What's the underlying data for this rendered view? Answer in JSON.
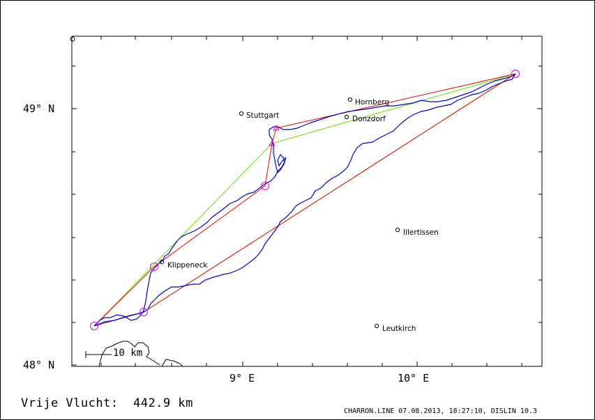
{
  "map": {
    "lat_labels": [
      {
        "id": "lat-49",
        "text": "49° N"
      },
      {
        "id": "lat-48",
        "text": "48° N"
      }
    ],
    "lon_labels": [
      {
        "id": "lon-9",
        "text": "9° E"
      },
      {
        "id": "lon-10",
        "text": "10° E"
      }
    ],
    "cities": [
      {
        "name": "Stuttgart"
      },
      {
        "name": "Hornberg"
      },
      {
        "name": "Donzdorf"
      },
      {
        "name": "Illertissen"
      },
      {
        "name": "Klippeneck"
      },
      {
        "name": "Leutkirch"
      }
    ],
    "scale_bar": {
      "label": "10 km"
    },
    "colors": {
      "frame": "#000000",
      "track": "#0000cc",
      "optimized_route": "#e00000",
      "alternate_route": "#66dd00",
      "turnpoint": "#dd00dd"
    }
  },
  "footer": {
    "distance": "Vrije Vlucht:  442.9 km",
    "info": "CHARRON.LINE 07.08.2013, 18:27:10, DISLIN 10.3"
  }
}
